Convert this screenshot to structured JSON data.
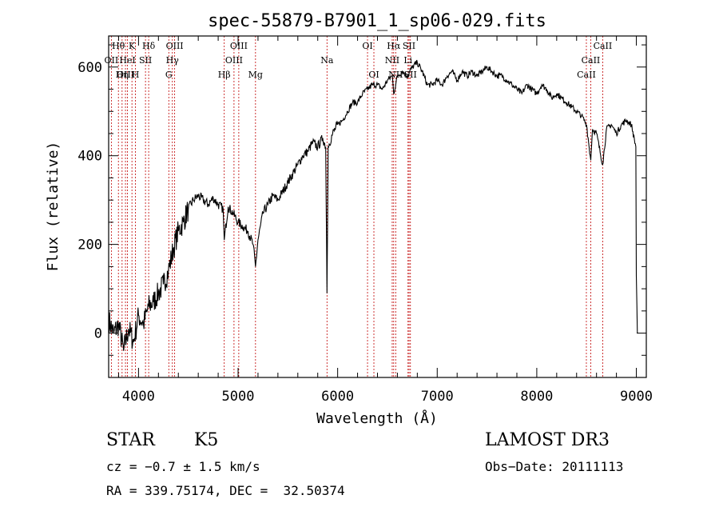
{
  "chart_data": {
    "type": "line",
    "title": "spec-55879-B7901_1_sp06-029.fits",
    "xlabel": "Wavelength (Å)",
    "ylabel": "Flux (relative)",
    "xlim": [
      3700,
      9100
    ],
    "ylim": [
      -100,
      670
    ],
    "xticks": [
      4000,
      5000,
      6000,
      7000,
      8000,
      9000
    ],
    "yticks": [
      0,
      200,
      400,
      600
    ],
    "xtick_labels": [
      "4000",
      "5000",
      "6000",
      "7000",
      "8000",
      "9000"
    ],
    "ytick_labels": [
      "0",
      "200",
      "400",
      "600"
    ],
    "grid": false,
    "series": [
      {
        "name": "spectrum",
        "x": [
          3700,
          3750,
          3800,
          3850,
          3900,
          3950,
          4000,
          4050,
          4100,
          4150,
          4200,
          4250,
          4300,
          4350,
          4400,
          4450,
          4500,
          4550,
          4600,
          4650,
          4700,
          4750,
          4800,
          4850,
          4861,
          4900,
          4950,
          5000,
          5050,
          5100,
          5150,
          5175,
          5200,
          5250,
          5300,
          5350,
          5400,
          5450,
          5500,
          5550,
          5600,
          5650,
          5700,
          5750,
          5800,
          5850,
          5880,
          5893,
          5905,
          5950,
          6000,
          6050,
          6100,
          6150,
          6200,
          6250,
          6300,
          6350,
          6400,
          6450,
          6500,
          6550,
          6563,
          6600,
          6650,
          6700,
          6750,
          6800,
          6850,
          6900,
          6950,
          7000,
          7050,
          7100,
          7150,
          7200,
          7250,
          7300,
          7350,
          7400,
          7450,
          7500,
          7550,
          7600,
          7650,
          7700,
          7750,
          7800,
          7850,
          7900,
          7950,
          8000,
          8050,
          8100,
          8150,
          8200,
          8250,
          8300,
          8350,
          8400,
          8450,
          8500,
          8542,
          8560,
          8600,
          8662,
          8700,
          8750,
          8800,
          8850,
          8900,
          8950,
          8995,
          9000,
          9010
        ],
        "y": [
          30,
          0,
          20,
          -40,
          10,
          -20,
          40,
          20,
          60,
          70,
          90,
          110,
          140,
          190,
          230,
          250,
          280,
          300,
          310,
          300,
          290,
          305,
          290,
          280,
          210,
          285,
          270,
          250,
          240,
          230,
          200,
          150,
          210,
          270,
          290,
          310,
          300,
          320,
          340,
          360,
          380,
          400,
          410,
          430,
          420,
          440,
          420,
          90,
          420,
          450,
          470,
          480,
          500,
          520,
          520,
          540,
          550,
          560,
          560,
          550,
          570,
          580,
          540,
          580,
          590,
          580,
          600,
          610,
          590,
          560,
          560,
          570,
          560,
          580,
          590,
          570,
          590,
          580,
          590,
          580,
          590,
          600,
          590,
          580,
          580,
          570,
          560,
          550,
          540,
          560,
          550,
          540,
          560,
          550,
          530,
          540,
          530,
          520,
          510,
          500,
          490,
          470,
          390,
          460,
          450,
          380,
          460,
          470,
          450,
          470,
          480,
          470,
          420,
          130,
          0
        ]
      }
    ],
    "lines": [
      {
        "label": "Hθ",
        "x": 3798,
        "row": 0
      },
      {
        "label": "OII",
        "x": 3727,
        "row": 1
      },
      {
        "label": "OIII",
        "x": 3869,
        "row": 2
      },
      {
        "label": "K",
        "x": 3934,
        "row": 0
      },
      {
        "label": "H",
        "x": 3969,
        "row": 2
      },
      {
        "label": "HeI",
        "x": 3889,
        "row": 1
      },
      {
        "label": "Hη",
        "x": 3835,
        "row": 2
      },
      {
        "label": "Hδ",
        "x": 4102,
        "row": 0
      },
      {
        "label": "SII",
        "x": 4070,
        "row": 1
      },
      {
        "label": "OIII",
        "x": 4363,
        "row": 0
      },
      {
        "label": "Hγ",
        "x": 4340,
        "row": 1
      },
      {
        "label": "G",
        "x": 4304,
        "row": 2
      },
      {
        "label": "Hβ",
        "x": 4861,
        "row": 2
      },
      {
        "label": "OIII",
        "x": 5007,
        "row": 0
      },
      {
        "label": "OIII",
        "x": 4959,
        "row": 1
      },
      {
        "label": "Mg",
        "x": 5175,
        "row": 2
      },
      {
        "label": "Na",
        "x": 5893,
        "row": 1
      },
      {
        "label": "OI",
        "x": 6300,
        "row": 0
      },
      {
        "label": "OI",
        "x": 6364,
        "row": 2
      },
      {
        "label": "Hα",
        "x": 6563,
        "row": 0
      },
      {
        "label": "NII",
        "x": 6548,
        "row": 1
      },
      {
        "label": "NII",
        "x": 6583,
        "row": 2
      },
      {
        "label": "SII",
        "x": 6717,
        "row": 0
      },
      {
        "label": "Li",
        "x": 6707,
        "row": 1
      },
      {
        "label": "SII",
        "x": 6731,
        "row": 2
      },
      {
        "label": "CaII",
        "x": 8662,
        "row": 0
      },
      {
        "label": "CaII",
        "x": 8542,
        "row": 1
      },
      {
        "label": "CaII",
        "x": 8498,
        "row": 2
      }
    ]
  },
  "info": {
    "object_class": "STAR",
    "subclass": "K5",
    "survey": "LAMOST DR3",
    "cz": "cz = −0.7 ± 1.5 km/s",
    "obs_date": "Obs−Date: 20111113",
    "coords": "RA = 339.75174, DEC =  32.50374"
  }
}
